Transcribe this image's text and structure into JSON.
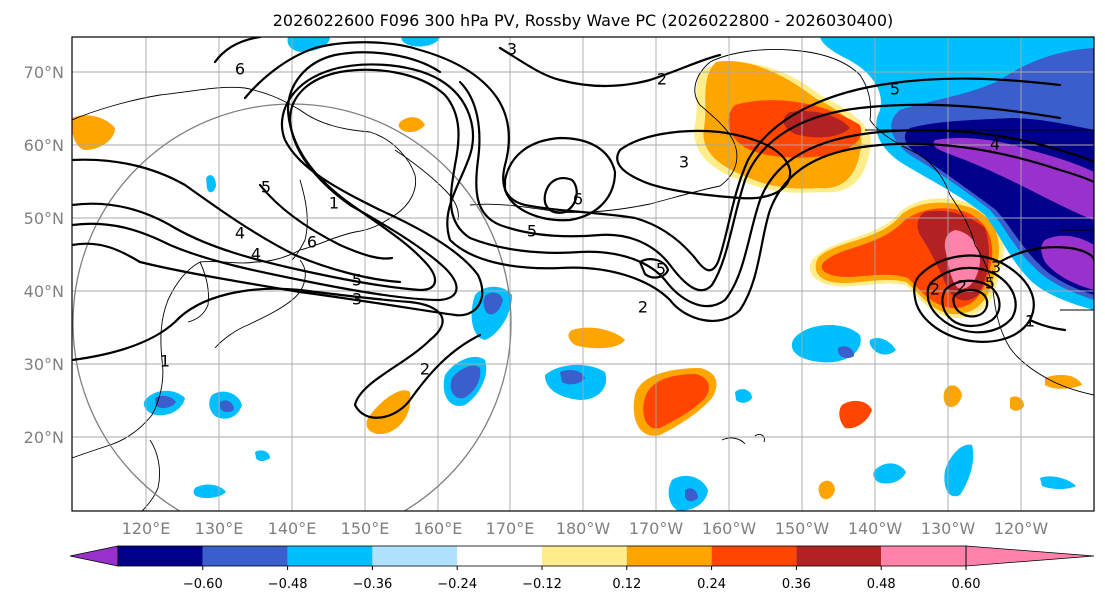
{
  "title": "2026022600 F096 300 hPa PV, Rossby Wave PC (2026022800 - 2026030400)",
  "lat_labels": [
    "70°N",
    "60°N",
    "50°N",
    "40°N",
    "30°N",
    "20°N"
  ],
  "lon_labels": [
    "120°E",
    "130°E",
    "140°E",
    "150°E",
    "160°E",
    "170°E",
    "180°W",
    "170°W",
    "160°W",
    "150°W",
    "140°W",
    "130°W",
    "120°W"
  ],
  "colorbar": {
    "ticks": [
      "−0.60",
      "−0.48",
      "−0.36",
      "−0.24",
      "−0.12",
      "0.12",
      "0.24",
      "0.36",
      "0.48",
      "0.60"
    ],
    "colors": [
      "#9932cc",
      "#00008b",
      "#3a5fcd",
      "#00bfff",
      "#b0e2ff",
      "#ffffff",
      "#ffec8b",
      "#ffa500",
      "#ff4500",
      "#b22222",
      "#ff82ab"
    ]
  },
  "contour_labels": [
    "3",
    "2",
    "6",
    "5",
    "3",
    "6",
    "1",
    "4",
    "5",
    "6",
    "5",
    "3",
    "4",
    "5",
    "2",
    "1",
    "5",
    "2",
    "3",
    "5",
    "4",
    "2",
    "1",
    "2"
  ]
}
